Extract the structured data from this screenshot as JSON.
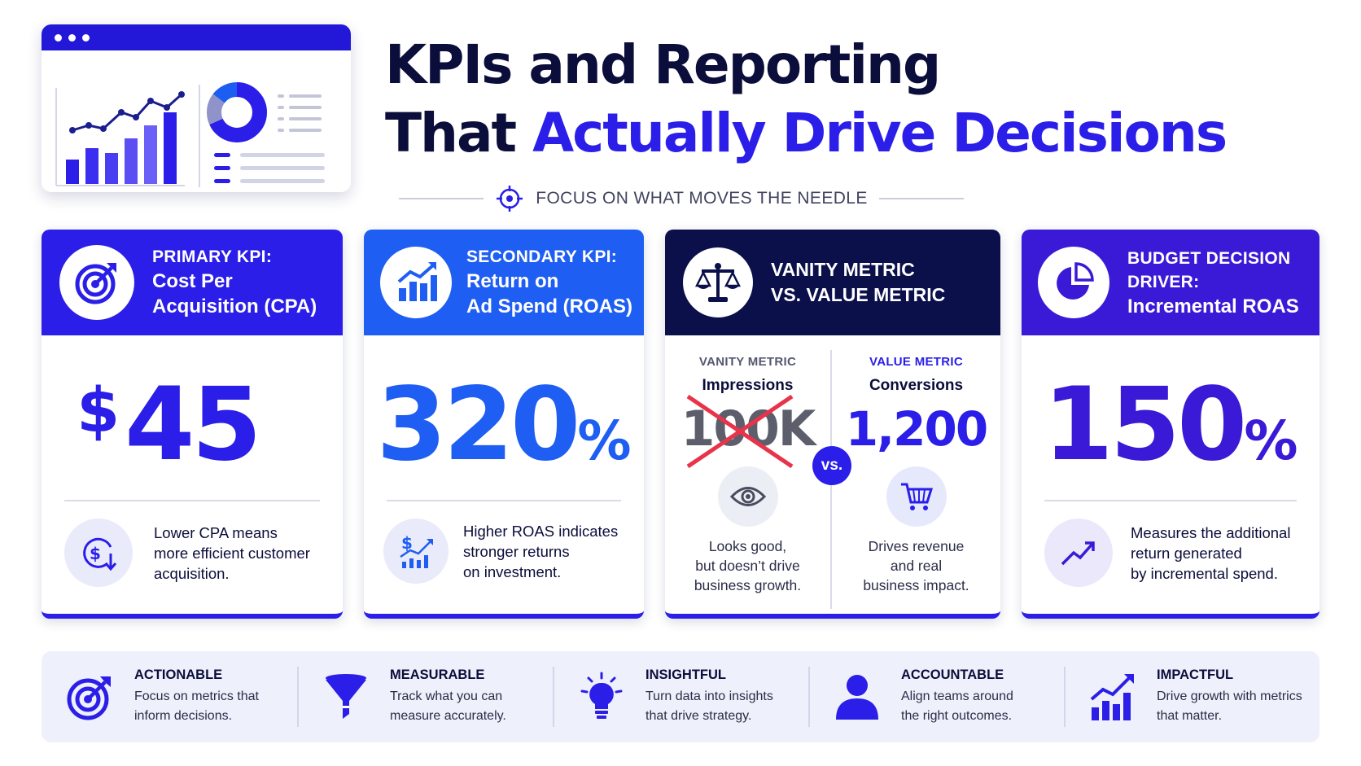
{
  "title": {
    "line1": "KPIs and Reporting",
    "line2_plain": "That ",
    "line2_accent": "Actually Drive Decisions"
  },
  "tagline": {
    "text": "FOCUS ON WHAT MOVES THE NEEDLE",
    "icon": "crosshair-icon"
  },
  "colors": {
    "accent": "#2a1ee8",
    "primary_header": "#2a1ee8",
    "secondary_header": "#1f5ef2",
    "vanity_header": "#0b0f4a",
    "budget_header": "#3a1ad6",
    "strike": "#e8344a"
  },
  "cards": [
    {
      "kicker": "PRIMARY KPI:",
      "title_lines": [
        "Cost Per",
        "Acquisition (CPA)"
      ],
      "icon": "target-arrow-icon",
      "metric_prefix": "$",
      "metric": "45",
      "metric_unit": "",
      "foot_icon": "dollar-down-icon",
      "foot_lines": [
        "Lower CPA means",
        "more efficient customer",
        "acquisition."
      ]
    },
    {
      "kicker": "SECONDARY KPI:",
      "title_lines": [
        "Return on",
        "Ad Spend (ROAS)"
      ],
      "icon": "growth-bars-icon",
      "metric_prefix": "",
      "metric": "320",
      "metric_unit": "%",
      "foot_icon": "dollar-growth-icon",
      "foot_lines": [
        "Higher ROAS indicates",
        "stronger returns",
        "on investment."
      ]
    },
    {
      "title_lines": [
        "VANITY METRIC",
        "VS. VALUE METRIC"
      ],
      "icon": "scales-icon",
      "vanity": {
        "label": "VANITY METRIC",
        "name": "Impressions",
        "value": "100K",
        "icon": "eye-icon",
        "lines": [
          "Looks good,",
          "but doesn’t drive",
          "business growth."
        ]
      },
      "vs": "vs.",
      "value_metric": {
        "label": "VALUE METRIC",
        "name": "Conversions",
        "value": "1,200",
        "icon": "cart-icon",
        "lines": [
          "Drives revenue",
          "and real",
          "business impact."
        ]
      }
    },
    {
      "title_lines": [
        "BUDGET DECISION",
        "DRIVER:",
        "Incremental ROAS"
      ],
      "icon": "pie-chart-icon",
      "metric_prefix": "",
      "metric": "150",
      "metric_unit": "%",
      "foot_icon": "trend-up-icon",
      "foot_lines": [
        "Measures the additional",
        "return generated",
        "by incremental spend."
      ]
    }
  ],
  "pillars": [
    {
      "title": "ACTIONABLE",
      "lines": [
        "Focus on metrics that",
        "inform decisions."
      ],
      "icon": "target-icon"
    },
    {
      "title": "MEASURABLE",
      "lines": [
        "Track what you can",
        "measure accurately."
      ],
      "icon": "funnel-icon"
    },
    {
      "title": "INSIGHTFUL",
      "lines": [
        "Turn data into insights",
        "that drive strategy."
      ],
      "icon": "lightbulb-icon"
    },
    {
      "title": "ACCOUNTABLE",
      "lines": [
        "Align teams around",
        "the right outcomes."
      ],
      "icon": "person-icon"
    },
    {
      "title": "IMPACTFUL",
      "lines": [
        "Drive growth with metrics",
        "that matter."
      ],
      "icon": "growth-chart-icon"
    }
  ]
}
